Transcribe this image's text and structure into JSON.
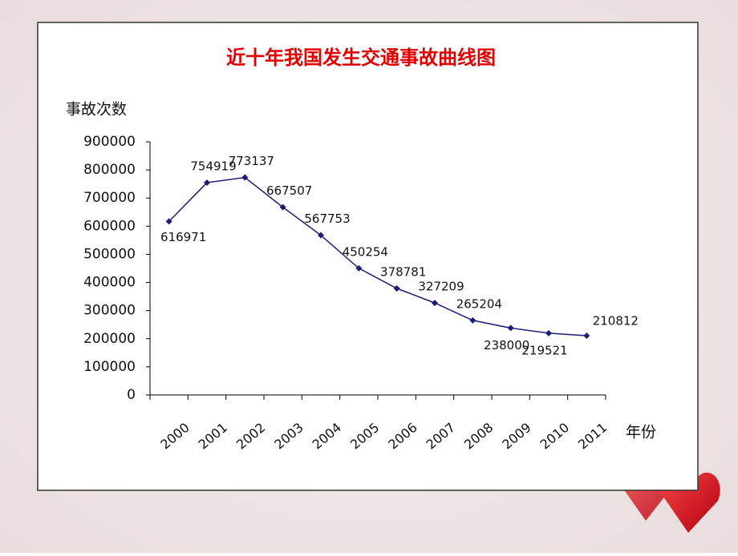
{
  "chart_data": {
    "type": "line",
    "title": "近十年我国发生交通事故曲线图",
    "y_label": "事故次数",
    "x_label": "年份",
    "categories": [
      "2000",
      "2001",
      "2002",
      "2003",
      "2004",
      "2005",
      "2006",
      "2007",
      "2008",
      "2009",
      "2010",
      "2011"
    ],
    "series": [
      {
        "name": "事故次数",
        "color": "#1c1c78",
        "values": [
          616971,
          754919,
          773137,
          667507,
          567753,
          450254,
          378781,
          327209,
          265204,
          238000,
          219521,
          210812
        ]
      }
    ],
    "ylim": [
      0,
      900000
    ],
    "yticks": [
      0,
      100000,
      200000,
      300000,
      400000,
      500000,
      600000,
      700000,
      800000,
      900000
    ],
    "data_labels": true
  }
}
